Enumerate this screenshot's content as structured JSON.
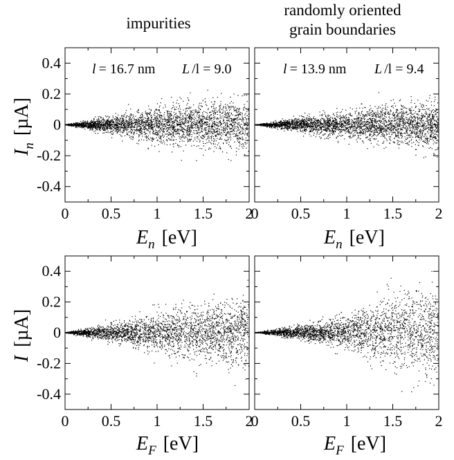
{
  "columns": [
    {
      "title_lines": [
        "impurities"
      ]
    },
    {
      "title_lines": [
        "randomly oriented",
        "grain boundaries"
      ]
    }
  ],
  "ylabel_top": {
    "main": "I",
    "sub": "n",
    "unit": "[µA]"
  },
  "ylabel_bottom": {
    "main": "I",
    "unit": "[µA]"
  },
  "xlabel_top": {
    "main": "E",
    "sub": "n",
    "unit": "[eV]"
  },
  "xlabel_bottom": {
    "main": "E",
    "sub": "F",
    "unit": "[eV]"
  },
  "annotations": [
    {
      "panel": 0,
      "text_l_symbol": "l",
      "text_l_value": "= 16.7 nm",
      "text_L_symbol": "L",
      "text_L_value": "/l = 9.0"
    },
    {
      "panel": 1,
      "text_l_symbol": "l",
      "text_l_value": "= 13.9 nm",
      "text_L_symbol": "L",
      "text_L_value": "/l = 9.4"
    }
  ],
  "chart_data": [
    {
      "type": "scatter",
      "panel": "top-left",
      "xlim": [
        0,
        2
      ],
      "ylim": [
        -0.5,
        0.5
      ],
      "xticks": [
        0,
        0.5,
        1,
        1.5,
        2
      ],
      "xtick_labels": [
        "0",
        "0.5",
        "1",
        "1.5",
        "2"
      ],
      "yticks": [
        -0.4,
        -0.2,
        0,
        0.2,
        0.4
      ],
      "ytick_labels": [
        "-0.4",
        "-0.2",
        "0",
        "0.2",
        "0.4"
      ],
      "envelope": {
        "x": [
          0,
          0.5,
          1,
          1.5,
          2
        ],
        "y_spread": [
          0,
          0.05,
          0.1,
          0.13,
          0.15
        ]
      },
      "max_abs": 0.26,
      "n_points": 3200
    },
    {
      "type": "scatter",
      "panel": "top-right",
      "xlim": [
        0,
        2
      ],
      "ylim": [
        -0.5,
        0.5
      ],
      "xticks": [
        0,
        0.5,
        1,
        1.5,
        2
      ],
      "xtick_labels": [
        "0",
        "0.5",
        "1",
        "1.5",
        "2"
      ],
      "yticks": [
        -0.4,
        -0.2,
        0,
        0.2,
        0.4
      ],
      "ytick_labels": [
        "",
        "",
        "",
        "",
        ""
      ],
      "envelope": {
        "x": [
          0,
          0.5,
          1,
          1.5,
          2
        ],
        "y_spread": [
          0,
          0.04,
          0.08,
          0.11,
          0.13
        ]
      },
      "max_abs": 0.22,
      "n_points": 3200
    },
    {
      "type": "scatter",
      "panel": "bottom-left",
      "xlim": [
        0,
        2
      ],
      "ylim": [
        -0.5,
        0.5
      ],
      "xticks": [
        0,
        0.5,
        1,
        1.5,
        2
      ],
      "xtick_labels": [
        "0",
        "0.5",
        "1",
        "1.5",
        "2"
      ],
      "yticks": [
        -0.4,
        -0.2,
        0,
        0.2,
        0.4
      ],
      "ytick_labels": [
        "-0.4",
        "-0.2",
        "0",
        "0.2",
        "0.4"
      ],
      "envelope": {
        "x": [
          0,
          0.5,
          1,
          1.5,
          2
        ],
        "y_spread": [
          0,
          0.05,
          0.11,
          0.17,
          0.2
        ]
      },
      "max_abs": 0.4,
      "n_points": 2800
    },
    {
      "type": "scatter",
      "panel": "bottom-right",
      "xlim": [
        0,
        2
      ],
      "ylim": [
        -0.5,
        0.5
      ],
      "xticks": [
        0,
        0.5,
        1,
        1.5,
        2
      ],
      "xtick_labels": [
        "0",
        "0.5",
        "1",
        "1.5",
        "2"
      ],
      "yticks": [
        -0.4,
        -0.2,
        0,
        0.2,
        0.4
      ],
      "ytick_labels": [
        "",
        "",
        "",
        "",
        ""
      ],
      "envelope": {
        "x": [
          0,
          0.5,
          1,
          1.5,
          2
        ],
        "y_spread": [
          0,
          0.04,
          0.09,
          0.2,
          0.28
        ]
      },
      "max_abs": 0.47,
      "n_points": 2800
    }
  ]
}
